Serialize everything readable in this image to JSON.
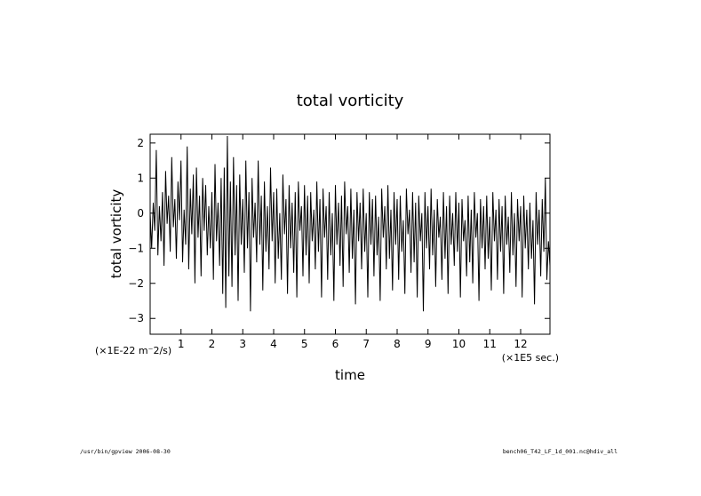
{
  "chart_data": {
    "type": "line",
    "title": "total vorticity",
    "xlabel": "time",
    "ylabel": "total vorticity",
    "y_unit": "(×1E-22 m⁻2/s)",
    "x_unit": "(×1E5 sec.)",
    "xlim": [
      0.0,
      12.95
    ],
    "ylim": [
      -3.45,
      2.25
    ],
    "x_ticks": [
      1,
      2,
      3,
      4,
      5,
      6,
      7,
      8,
      9,
      10,
      11,
      12
    ],
    "x_tick_labels": [
      "1",
      "2",
      "3",
      "4",
      "5",
      "6",
      "7",
      "8",
      "9",
      "10",
      "11",
      "12"
    ],
    "y_ticks": [
      2,
      1,
      0,
      -1,
      -2,
      -3
    ],
    "y_tick_labels": [
      "2",
      "1",
      "0",
      "−1",
      "−2",
      "−3"
    ],
    "grid": false,
    "series": [
      {
        "color": "#000000",
        "x": [
          0.0,
          0.05,
          0.1,
          0.15,
          0.2,
          0.25,
          0.3,
          0.35,
          0.4,
          0.45,
          0.5,
          0.55,
          0.6,
          0.65,
          0.7,
          0.75,
          0.8,
          0.85,
          0.9,
          0.95,
          1.0,
          1.05,
          1.1,
          1.15,
          1.2,
          1.25,
          1.3,
          1.35,
          1.4,
          1.45,
          1.5,
          1.55,
          1.6,
          1.65,
          1.7,
          1.75,
          1.8,
          1.85,
          1.9,
          1.95,
          2.0,
          2.05,
          2.1,
          2.15,
          2.2,
          2.25,
          2.3,
          2.35,
          2.4,
          2.45,
          2.5,
          2.55,
          2.6,
          2.65,
          2.7,
          2.75,
          2.8,
          2.85,
          2.9,
          2.95,
          3.0,
          3.05,
          3.1,
          3.15,
          3.2,
          3.25,
          3.3,
          3.35,
          3.4,
          3.45,
          3.5,
          3.55,
          3.6,
          3.65,
          3.7,
          3.75,
          3.8,
          3.85,
          3.9,
          3.95,
          4.0,
          4.05,
          4.1,
          4.15,
          4.2,
          4.25,
          4.3,
          4.35,
          4.4,
          4.45,
          4.5,
          4.55,
          4.6,
          4.65,
          4.7,
          4.75,
          4.8,
          4.85,
          4.9,
          4.95,
          5.0,
          5.05,
          5.1,
          5.15,
          5.2,
          5.25,
          5.3,
          5.35,
          5.4,
          5.45,
          5.5,
          5.55,
          5.6,
          5.65,
          5.7,
          5.75,
          5.8,
          5.85,
          5.9,
          5.95,
          6.0,
          6.05,
          6.1,
          6.15,
          6.2,
          6.25,
          6.3,
          6.35,
          6.4,
          6.45,
          6.5,
          6.55,
          6.6,
          6.65,
          6.7,
          6.75,
          6.8,
          6.85,
          6.9,
          6.95,
          7.0,
          7.05,
          7.1,
          7.15,
          7.2,
          7.25,
          7.3,
          7.35,
          7.4,
          7.45,
          7.5,
          7.55,
          7.6,
          7.65,
          7.7,
          7.75,
          7.8,
          7.85,
          7.9,
          7.95,
          8.0,
          8.05,
          8.1,
          8.15,
          8.2,
          8.25,
          8.3,
          8.35,
          8.4,
          8.45,
          8.5,
          8.55,
          8.6,
          8.65,
          8.7,
          8.75,
          8.8,
          8.85,
          8.9,
          8.95,
          9.0,
          9.05,
          9.1,
          9.15,
          9.2,
          9.25,
          9.3,
          9.35,
          9.4,
          9.45,
          9.5,
          9.55,
          9.6,
          9.65,
          9.7,
          9.75,
          9.8,
          9.85,
          9.9,
          9.95,
          10.0,
          10.05,
          10.1,
          10.15,
          10.2,
          10.25,
          10.3,
          10.35,
          10.4,
          10.45,
          10.5,
          10.55,
          10.6,
          10.65,
          10.7,
          10.75,
          10.8,
          10.85,
          10.9,
          10.95,
          11.0,
          11.05,
          11.1,
          11.15,
          11.2,
          11.25,
          11.3,
          11.35,
          11.4,
          11.45,
          11.5,
          11.55,
          11.6,
          11.65,
          11.7,
          11.75,
          11.8,
          11.85,
          11.9,
          11.95,
          12.0,
          12.05,
          12.1,
          12.15,
          12.2,
          12.25,
          12.3,
          12.35,
          12.4,
          12.45,
          12.5,
          12.55,
          12.6,
          12.65,
          12.7,
          12.75,
          12.8,
          12.85,
          12.9,
          12.95
        ],
        "y": [
          0.0,
          -1.0,
          0.3,
          -0.5,
          1.8,
          -1.2,
          0.2,
          -0.8,
          0.6,
          -1.5,
          1.2,
          -0.3,
          0.5,
          -1.1,
          1.6,
          -0.4,
          0.4,
          -1.3,
          0.9,
          -0.2,
          1.5,
          -1.4,
          0.1,
          -0.9,
          1.9,
          -1.6,
          0.7,
          -0.6,
          1.1,
          -2.0,
          1.3,
          -0.7,
          0.5,
          -1.8,
          1.0,
          -0.5,
          0.8,
          -1.2,
          0.2,
          -1.0,
          0.6,
          -1.9,
          1.4,
          -0.8,
          0.3,
          -1.5,
          1.0,
          -2.3,
          1.3,
          -2.7,
          2.2,
          -1.8,
          0.9,
          -2.1,
          1.6,
          -1.2,
          0.8,
          -2.5,
          1.1,
          -0.9,
          0.4,
          -1.7,
          1.5,
          -1.0,
          0.6,
          -2.8,
          1.0,
          -0.7,
          0.3,
          -1.4,
          1.5,
          -0.9,
          0.5,
          -2.2,
          0.9,
          -1.1,
          0.2,
          -1.6,
          1.3,
          -0.8,
          0.6,
          -2.0,
          0.7,
          -1.3,
          0.0,
          -1.9,
          1.1,
          -0.6,
          0.4,
          -2.3,
          0.8,
          -1.0,
          0.3,
          -1.7,
          0.6,
          -2.4,
          0.9,
          -0.5,
          0.2,
          -1.8,
          0.8,
          -1.2,
          0.5,
          -2.0,
          0.6,
          -0.8,
          0.1,
          -1.6,
          0.9,
          -1.1,
          0.4,
          -2.4,
          0.7,
          -0.7,
          0.2,
          -1.9,
          0.6,
          -1.2,
          0.0,
          -2.5,
          0.8,
          -0.9,
          0.3,
          -1.5,
          0.5,
          -2.1,
          0.9,
          -0.6,
          0.2,
          -1.7,
          0.7,
          -1.3,
          0.1,
          -2.6,
          0.6,
          -0.8,
          0.3,
          -1.6,
          0.7,
          -1.1,
          0.0,
          -2.4,
          0.6,
          -0.9,
          0.4,
          -1.8,
          0.5,
          -1.2,
          -0.1,
          -2.5,
          0.7,
          -0.7,
          0.2,
          -1.6,
          0.8,
          -1.3,
          0.1,
          -2.2,
          0.6,
          -0.9,
          0.4,
          -1.9,
          0.5,
          -1.1,
          -0.2,
          -2.3,
          0.7,
          -0.6,
          0.1,
          -1.7,
          0.6,
          -1.4,
          0.3,
          -2.4,
          0.5,
          -0.8,
          0.0,
          -2.8,
          0.6,
          -1.0,
          0.2,
          -1.6,
          0.7,
          -1.2,
          0.1,
          -2.1,
          0.4,
          -0.7,
          -0.1,
          -1.9,
          0.6,
          -1.3,
          0.2,
          -2.3,
          0.5,
          -0.9,
          0.0,
          -1.5,
          0.6,
          -1.1,
          0.3,
          -2.4,
          0.4,
          -0.8,
          -0.2,
          -1.8,
          0.5,
          -1.4,
          0.1,
          -2.0,
          0.6,
          -0.7,
          0.0,
          -2.5,
          0.4,
          -1.0,
          0.2,
          -1.6,
          0.5,
          -1.3,
          -0.1,
          -2.2,
          0.6,
          -0.8,
          0.1,
          -1.9,
          0.4,
          -1.1,
          0.2,
          -2.3,
          0.5,
          -0.9,
          -0.1,
          -1.7,
          0.6,
          -1.2,
          0.0,
          -2.1,
          0.4,
          -0.8,
          0.2,
          -2.4,
          0.5,
          -1.0,
          0.1,
          -1.6,
          0.3,
          -1.3,
          -0.2,
          -2.6,
          0.6,
          -0.9,
          0.1,
          -1.8,
          0.4,
          -1.1,
          1.0,
          -1.9,
          -0.8,
          -1.5
        ]
      }
    ]
  },
  "footer": {
    "left": "/usr/bin/gpview  2006-08-30",
    "right": "bench06_T42_LF_1d_001.nc@hdiv_all"
  }
}
